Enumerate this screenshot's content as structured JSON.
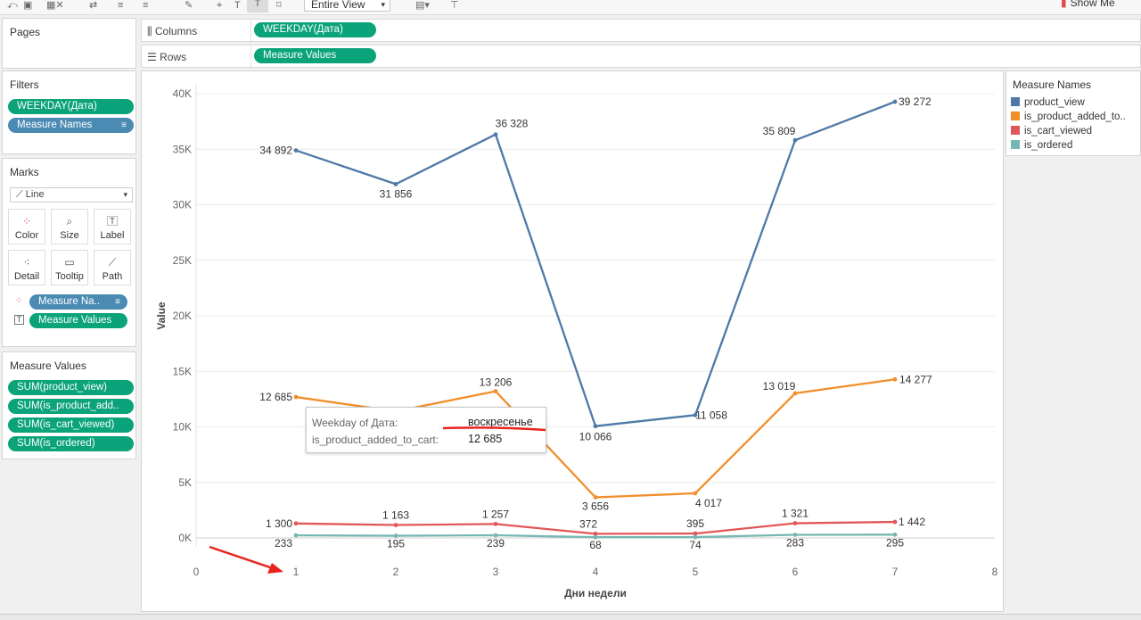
{
  "toolbar": {
    "fit_label": "Entire View",
    "show_me_label": "Show Me"
  },
  "pages": {
    "title": "Pages"
  },
  "shelves": {
    "columns_label": "Columns",
    "columns_pill": "WEEKDAY(Дата)",
    "rows_label": "Rows",
    "rows_pill": "Measure Values"
  },
  "filters": {
    "title": "Filters",
    "items": [
      "WEEKDAY(Дата)",
      "Measure Names"
    ]
  },
  "marks": {
    "title": "Marks",
    "type": "Line",
    "buttons": [
      "Color",
      "Size",
      "Label",
      "Detail",
      "Tooltip",
      "Path"
    ],
    "pills": [
      "Measure Na..",
      "Measure Values"
    ]
  },
  "measure_values": {
    "title": "Measure Values",
    "items": [
      "SUM(product_view)",
      "SUM(is_product_add..",
      "SUM(is_cart_viewed)",
      "SUM(is_ordered)"
    ]
  },
  "legend": {
    "title": "Measure Names",
    "items": [
      {
        "name": "product_view",
        "color": "#4e79a7"
      },
      {
        "name": "is_product_added_to..",
        "color": "#f28e2b"
      },
      {
        "name": "is_cart_viewed",
        "color": "#e15759"
      },
      {
        "name": "is_ordered",
        "color": "#76b7b2"
      }
    ]
  },
  "tooltip": {
    "row1_key": "Weekday of Дата:",
    "row1_value": "воскресенье",
    "row2_key": "is_product_added_to_cart:",
    "row2_value": "12 685"
  },
  "chart_data": {
    "type": "line",
    "x": [
      1,
      2,
      3,
      4,
      5,
      6,
      7
    ],
    "xlabel": "Дни недели",
    "ylabel": "Value",
    "xlim": [
      0,
      8
    ],
    "ylim": [
      0,
      40000
    ],
    "x_ticks": [
      "0",
      "1",
      "2",
      "3",
      "4",
      "5",
      "6",
      "7",
      "8"
    ],
    "y_ticks": [
      "0K",
      "5K",
      "10K",
      "15K",
      "20K",
      "25K",
      "30K",
      "35K",
      "40K"
    ],
    "grid": true,
    "legend_position": "right",
    "series": [
      {
        "name": "product_view",
        "color": "#4e79a7",
        "values": [
          34892,
          31856,
          36328,
          10066,
          11058,
          35809,
          39272
        ],
        "labels": [
          "34 892",
          "31 856",
          "36 328",
          "10 066",
          "11 058",
          "35 809",
          "39 272"
        ]
      },
      {
        "name": "is_product_added_to_cart",
        "color": "#f28e2b",
        "values": [
          12685,
          11400,
          13206,
          3656,
          4017,
          13019,
          14277
        ],
        "labels": [
          "12 685",
          "",
          "13 206",
          "3 656",
          "4 017",
          "13 019",
          "14 277"
        ]
      },
      {
        "name": "is_cart_viewed",
        "color": "#e15759",
        "values": [
          1300,
          1163,
          1257,
          372,
          395,
          1321,
          1442
        ],
        "labels": [
          "1 300",
          "1 163",
          "1 257",
          "372",
          "395",
          "1 321",
          "1 442"
        ]
      },
      {
        "name": "is_ordered",
        "color": "#76b7b2",
        "values": [
          233,
          195,
          239,
          68,
          74,
          283,
          295
        ],
        "labels": [
          "233",
          "195",
          "239",
          "68",
          "74",
          "283",
          "295"
        ]
      }
    ]
  }
}
